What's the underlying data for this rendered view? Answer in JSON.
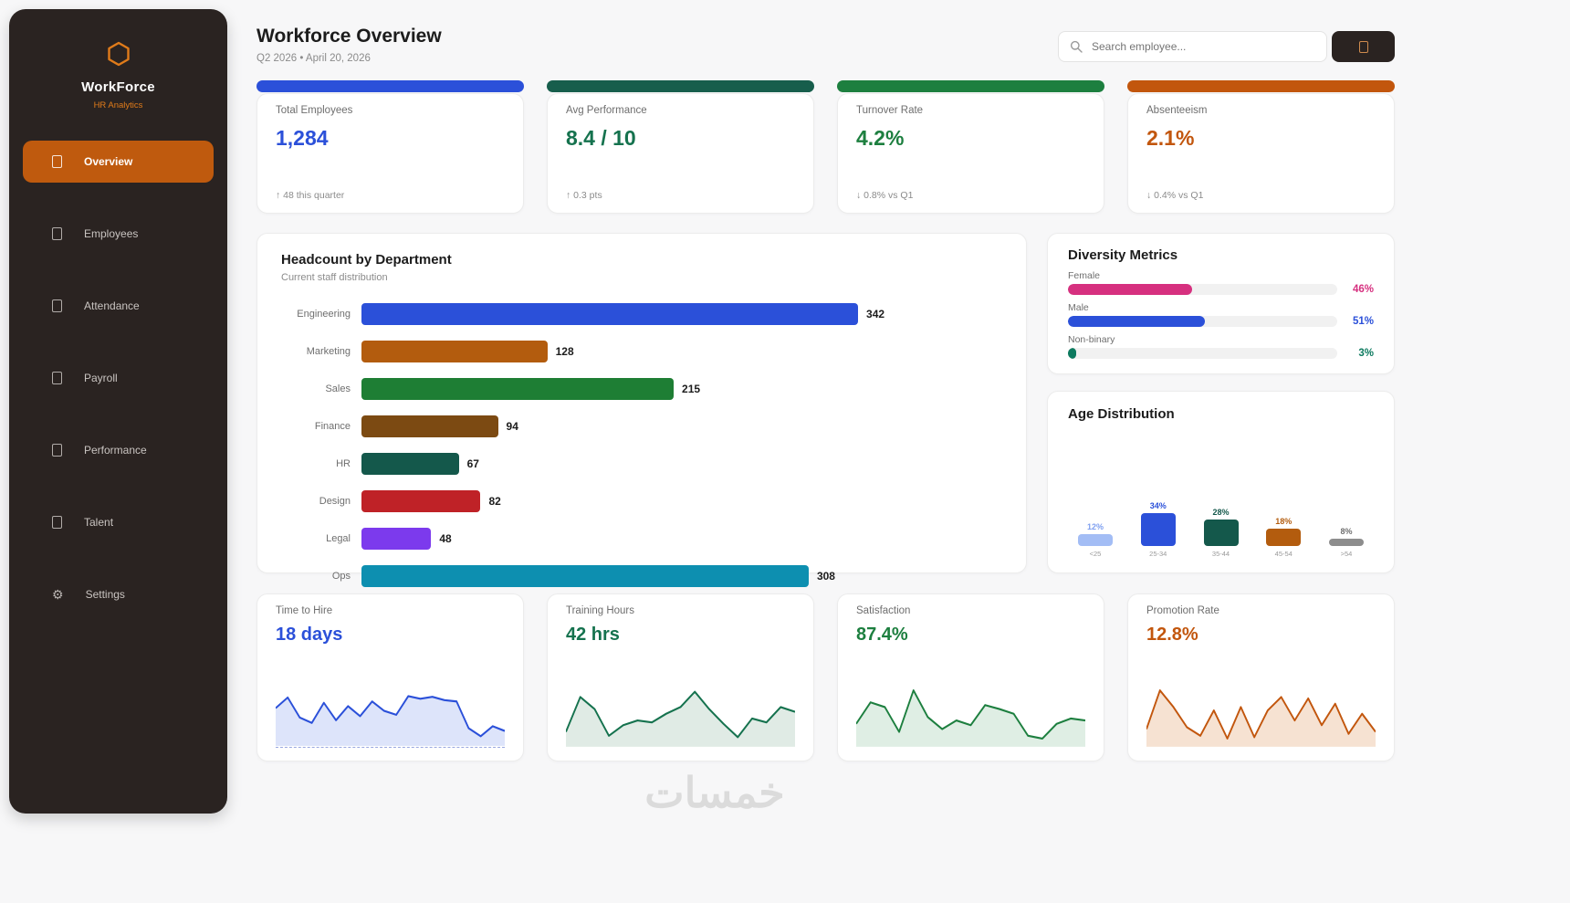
{
  "sidebar": {
    "brand": "WorkForce",
    "brand_sub": "HR Analytics",
    "logo_color": "#e07b1a",
    "items": [
      {
        "label": "Overview",
        "icon": "grid-icon",
        "active": true
      },
      {
        "label": "Employees",
        "icon": "users-icon",
        "active": false
      },
      {
        "label": "Attendance",
        "icon": "calendar-icon",
        "active": false
      },
      {
        "label": "Payroll",
        "icon": "wallet-icon",
        "active": false
      },
      {
        "label": "Performance",
        "icon": "gauge-icon",
        "active": false
      },
      {
        "label": "Talent",
        "icon": "star-icon",
        "active": false
      },
      {
        "label": "Settings",
        "icon": "gear-icon",
        "active": false
      }
    ]
  },
  "header": {
    "title": "Workforce Overview",
    "subtitle": "Q2 2026  •  April 20, 2026",
    "search_placeholder": "Search employee..."
  },
  "kpis": [
    {
      "label": "Total Employees",
      "value": "1,284",
      "footer": "↑ 48 this quarter",
      "accent": "#2b50d9",
      "color": "#2b50d9"
    },
    {
      "label": "Avg Performance",
      "value": "8.4 / 10",
      "footer": "↑ 0.3 pts",
      "accent": "#175e4c",
      "color": "#15724e"
    },
    {
      "label": "Turnover Rate",
      "value": "4.2%",
      "footer": "↓ 0.8% vs Q1",
      "accent": "#1d7f3f",
      "color": "#1d7f3f"
    },
    {
      "label": "Absenteeism",
      "value": "2.1%",
      "footer": "↓ 0.4% vs Q1",
      "accent": "#c2560d",
      "color": "#c2560d"
    }
  ],
  "headcount": {
    "title": "Headcount by Department",
    "subtitle": "Current staff distribution",
    "max": 342,
    "chart_data": {
      "type": "bar",
      "orientation": "horizontal",
      "categories": [
        "Engineering",
        "Marketing",
        "Sales",
        "Finance",
        "HR",
        "Design",
        "Legal",
        "Ops"
      ],
      "values": [
        342,
        128,
        215,
        94,
        67,
        82,
        48,
        308
      ]
    },
    "items": [
      {
        "label": "Engineering",
        "value": 342,
        "color": "#2b50d9"
      },
      {
        "label": "Marketing",
        "value": 128,
        "color": "#b35c0e"
      },
      {
        "label": "Sales",
        "value": 215,
        "color": "#1e7e34"
      },
      {
        "label": "Finance",
        "value": 94,
        "color": "#7c4a12"
      },
      {
        "label": "HR",
        "value": 67,
        "color": "#14584b"
      },
      {
        "label": "Design",
        "value": 82,
        "color": "#bf2227"
      },
      {
        "label": "Legal",
        "value": 48,
        "color": "#7c3aed"
      },
      {
        "label": "Ops",
        "value": 308,
        "color": "#0d8fb0"
      }
    ]
  },
  "diversity": {
    "title": "Diversity Metrics",
    "items": [
      {
        "label": "Female",
        "pct": 46,
        "pct_label": "46%",
        "color": "#d6307f"
      },
      {
        "label": "Male",
        "pct": 51,
        "pct_label": "51%",
        "color": "#2b50d9"
      },
      {
        "label": "Non-binary",
        "pct": 3,
        "pct_label": "3%",
        "color": "#0d7a5f"
      }
    ]
  },
  "age": {
    "title": "Age Distribution",
    "chart_data": {
      "type": "bar",
      "categories": [
        "<25",
        "25-34",
        "35-44",
        "45-54",
        ">54"
      ],
      "values": [
        12,
        34,
        28,
        18,
        8
      ],
      "unit": "%"
    },
    "items": [
      {
        "label": "<25",
        "pct": 12,
        "pct_label": "12%",
        "color": "#a3bdf5",
        "text": "#7e9ff0"
      },
      {
        "label": "25-34",
        "pct": 34,
        "pct_label": "34%",
        "color": "#2b50d9",
        "text": "#2b50d9"
      },
      {
        "label": "35-44",
        "pct": 28,
        "pct_label": "28%",
        "color": "#14584b",
        "text": "#14584b"
      },
      {
        "label": "45-54",
        "pct": 18,
        "pct_label": "18%",
        "color": "#b35c0e",
        "text": "#b35c0e"
      },
      {
        "label": ">54",
        "pct": 8,
        "pct_label": "8%",
        "color": "#8d8d8d",
        "text": "#6e6e6e"
      }
    ]
  },
  "sparkcards": [
    {
      "label": "Time to Hire",
      "value": "18 days",
      "color": "#2b50d9",
      "fill": "#dde4fa",
      "dashed": true,
      "points": [
        52,
        68,
        38,
        30,
        60,
        34,
        55,
        40,
        62,
        48,
        42,
        70,
        66,
        69,
        64,
        62,
        22,
        10,
        25,
        18
      ]
    },
    {
      "label": "Training Hours",
      "value": "42 hrs",
      "color": "#15724e",
      "fill": "#e0ebe5",
      "dashed": false,
      "points": [
        18,
        70,
        52,
        12,
        28,
        35,
        32,
        45,
        55,
        78,
        52,
        30,
        10,
        38,
        32,
        55,
        48
      ]
    },
    {
      "label": "Satisfaction",
      "value": "87.4%",
      "color": "#1d7f3f",
      "fill": "#dfeee4",
      "dashed": false,
      "points": [
        30,
        62,
        55,
        18,
        80,
        40,
        22,
        35,
        28,
        58,
        52,
        45,
        12,
        8,
        30,
        38,
        35
      ]
    },
    {
      "label": "Promotion Rate",
      "value": "12.8%",
      "color": "#c2560d",
      "fill": "#f6e2d2",
      "dashed": false,
      "points": [
        22,
        80,
        55,
        25,
        12,
        50,
        8,
        55,
        10,
        50,
        70,
        35,
        68,
        28,
        60,
        15,
        45,
        18
      ]
    }
  ],
  "watermark": "خمسات"
}
